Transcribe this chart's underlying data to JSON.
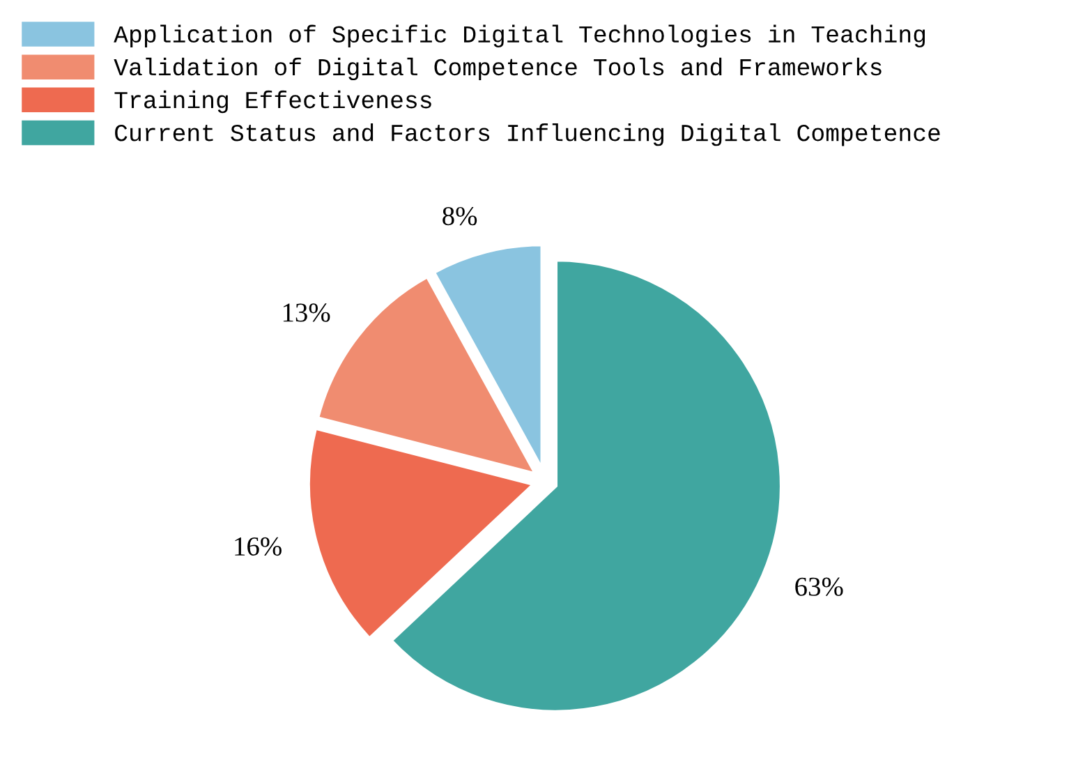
{
  "chart_data": {
    "type": "pie",
    "categories": [
      "Application of Specific Digital Technologies in Teaching",
      "Validation of Digital Competence Tools and Frameworks",
      "Training Effectiveness",
      "Current Status and Factors Influencing Digital Competence"
    ],
    "values": [
      8,
      13,
      16,
      63
    ],
    "colors": [
      "#8ac4e0",
      "#f08c70",
      "#ee6a50",
      "#40a6a0"
    ],
    "value_labels": [
      "8%",
      "13%",
      "16%",
      "63%"
    ],
    "legend": "top left"
  }
}
